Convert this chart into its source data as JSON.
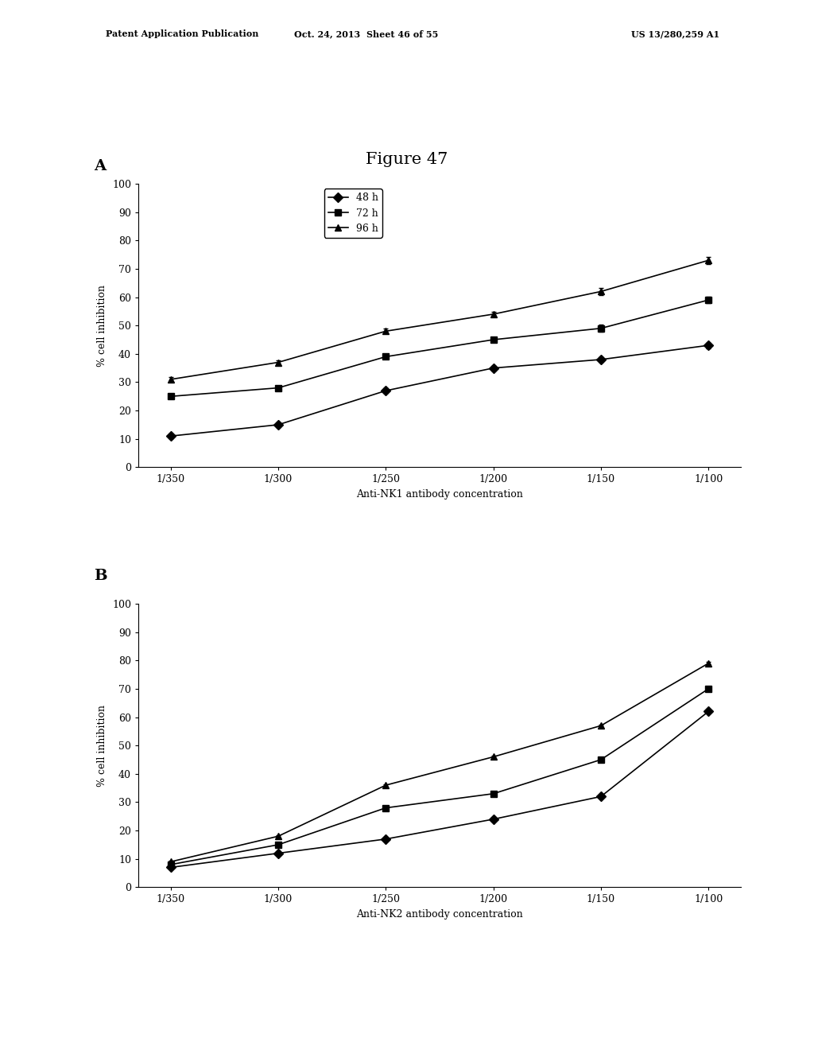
{
  "figure_title": "Figure 47",
  "header_line1": "Patent Application Publication",
  "header_line2": "Oct. 24, 2013  Sheet 46 of 55",
  "header_line3": "US 13/280,259 A1",
  "x_labels": [
    "1/350",
    "1/300",
    "1/250",
    "1/200",
    "1/150",
    "1/100"
  ],
  "x_positions": [
    0,
    1,
    2,
    3,
    4,
    5
  ],
  "panel_A": {
    "label": "A",
    "xlabel": "Anti-NK1 antibody concentration",
    "ylabel": "% cell inhibition",
    "ylim": [
      0,
      100
    ],
    "yticks": [
      0,
      10,
      20,
      30,
      40,
      50,
      60,
      70,
      80,
      90,
      100
    ],
    "series": [
      {
        "label": "48 h",
        "marker": "D",
        "values": [
          11,
          15,
          27,
          35,
          38,
          43
        ],
        "errors": [
          0.8,
          0.8,
          0.8,
          0.8,
          0.8,
          1.0
        ]
      },
      {
        "label": "72 h",
        "marker": "s",
        "values": [
          25,
          28,
          39,
          45,
          49,
          59
        ],
        "errors": [
          0.8,
          0.8,
          0.8,
          0.8,
          1.2,
          1.2
        ]
      },
      {
        "label": "96 h",
        "marker": "^",
        "values": [
          31,
          37,
          48,
          54,
          62,
          73
        ],
        "errors": [
          0.8,
          0.8,
          0.8,
          0.8,
          1.2,
          1.2
        ]
      }
    ]
  },
  "panel_B": {
    "label": "B",
    "xlabel": "Anti-NK2 antibody concentration",
    "ylabel": "% cell inhibition",
    "ylim": [
      0,
      100
    ],
    "yticks": [
      0,
      10,
      20,
      30,
      40,
      50,
      60,
      70,
      80,
      90,
      100
    ],
    "series": [
      {
        "label": "48 h",
        "marker": "D",
        "values": [
          7,
          12,
          17,
          24,
          32,
          62
        ],
        "errors": [
          0.4,
          0.4,
          0.4,
          0.4,
          0.4,
          0.4
        ]
      },
      {
        "label": "72 h",
        "marker": "s",
        "values": [
          8,
          15,
          28,
          33,
          45,
          70
        ],
        "errors": [
          0.4,
          0.4,
          0.4,
          0.4,
          0.4,
          0.4
        ]
      },
      {
        "label": "96 h",
        "marker": "^",
        "values": [
          9,
          18,
          36,
          46,
          57,
          79
        ],
        "errors": [
          0.4,
          0.4,
          0.4,
          0.4,
          0.4,
          0.4
        ]
      }
    ]
  },
  "line_color": "#000000",
  "bg_color": "#ffffff",
  "legend_fontsize": 9,
  "axis_fontsize": 9,
  "tick_fontsize": 9,
  "title_fontsize": 15
}
